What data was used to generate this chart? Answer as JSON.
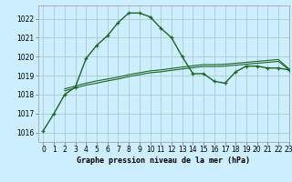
{
  "title": "Graphe pression niveau de la mer (hPa)",
  "background_color": "#cceeff",
  "grid_color": "#aacccc",
  "line_color": "#1a6620",
  "xlim": [
    -0.5,
    23
  ],
  "ylim": [
    1015.5,
    1022.7
  ],
  "yticks": [
    1016,
    1017,
    1018,
    1019,
    1020,
    1021,
    1022
  ],
  "xticks": [
    0,
    1,
    2,
    3,
    4,
    5,
    6,
    7,
    8,
    9,
    10,
    11,
    12,
    13,
    14,
    15,
    16,
    17,
    18,
    19,
    20,
    21,
    22,
    23
  ],
  "series": [
    {
      "x": [
        0,
        1,
        2,
        3,
        4,
        5,
        6,
        7,
        8,
        9,
        10,
        11,
        12,
        13,
        14,
        15,
        16,
        17,
        18,
        19,
        20,
        21,
        22,
        23
      ],
      "y": [
        1016.1,
        1017.0,
        1018.0,
        1018.4,
        1019.9,
        1020.6,
        1021.1,
        1021.8,
        1022.3,
        1022.3,
        1022.1,
        1021.5,
        1021.0,
        1020.0,
        1019.1,
        1019.1,
        1018.7,
        1018.6,
        1019.2,
        1019.5,
        1019.5,
        1019.4,
        1019.4,
        1019.3
      ],
      "marker": true,
      "lw": 1.0
    },
    {
      "x": [
        2,
        3,
        4,
        5,
        6,
        7,
        8,
        9,
        10,
        11,
        12,
        13,
        14,
        15,
        16,
        17,
        18,
        19,
        20,
        21,
        22,
        23
      ],
      "y": [
        1018.2,
        1018.35,
        1018.5,
        1018.6,
        1018.72,
        1018.82,
        1018.95,
        1019.05,
        1019.15,
        1019.2,
        1019.28,
        1019.35,
        1019.42,
        1019.48,
        1019.48,
        1019.5,
        1019.55,
        1019.6,
        1019.65,
        1019.7,
        1019.75,
        1019.3
      ],
      "marker": false,
      "lw": 0.8
    },
    {
      "x": [
        2,
        3,
        4,
        5,
        6,
        7,
        8,
        9,
        10,
        11,
        12,
        13,
        14,
        15,
        16,
        17,
        18,
        19,
        20,
        21,
        22,
        23
      ],
      "y": [
        1018.3,
        1018.45,
        1018.6,
        1018.72,
        1018.82,
        1018.92,
        1019.05,
        1019.15,
        1019.25,
        1019.3,
        1019.38,
        1019.45,
        1019.52,
        1019.58,
        1019.58,
        1019.6,
        1019.65,
        1019.7,
        1019.75,
        1019.8,
        1019.85,
        1019.35
      ],
      "marker": false,
      "lw": 0.8
    }
  ],
  "title_fontsize": 6.0,
  "tick_fontsize": 5.5
}
